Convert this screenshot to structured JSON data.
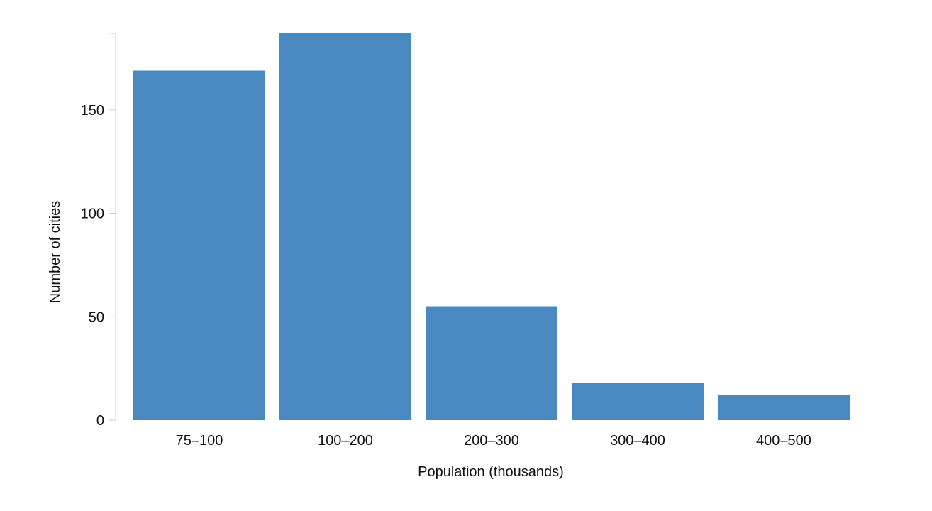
{
  "chart_data": {
    "type": "bar",
    "title": "",
    "xlabel": "Population (thousands)",
    "ylabel": "Number of cities",
    "categories": [
      "75–100",
      "100–200",
      "200–300",
      "300–400",
      "400–500"
    ],
    "values": [
      169,
      187,
      55,
      18,
      12
    ],
    "ylim": [
      0,
      187
    ],
    "yticks": [
      0,
      50,
      100,
      150
    ],
    "bar_color": "#4a89c0",
    "grid": false,
    "legend": "none"
  }
}
